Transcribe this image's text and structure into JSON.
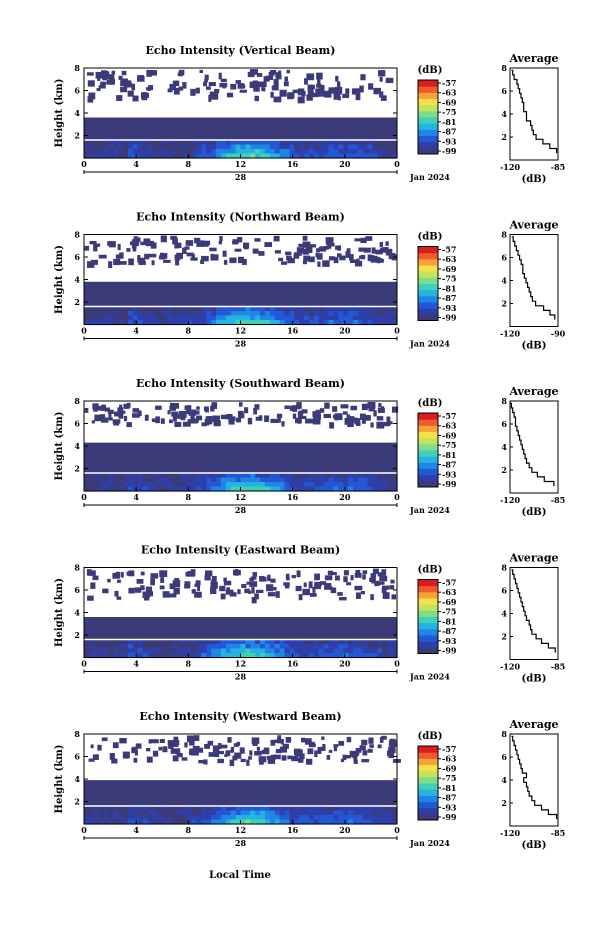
{
  "figure": {
    "xlabel": "Local Time",
    "date_label": "Jan 2024",
    "day_label": "28",
    "avg_title": "Average",
    "cbar_label": "(dB)",
    "avg_xlabel": "(dB)"
  },
  "colors": {
    "background_fill": "#3b3b7a",
    "colormap": [
      "#3b3b7a",
      "#2f3fa8",
      "#2457d6",
      "#1f86e8",
      "#27b3e0",
      "#3fd0b8",
      "#7fdc8a",
      "#c2e35a",
      "#f4e04a",
      "#f6a43a",
      "#ef5a2e",
      "#d81e1e"
    ]
  },
  "chart_data": [
    {
      "type": "heatmap",
      "title": "Echo Intensity (Vertical Beam)",
      "ylabel": "Height (km)",
      "x_ticks": [
        "0",
        "4",
        "8",
        "12",
        "16",
        "20",
        "0"
      ],
      "y_ticks": [
        "2",
        "4",
        "6",
        "8"
      ],
      "xlim": [
        0,
        24
      ],
      "ylim": [
        0,
        8
      ],
      "colorbar_ticks": [
        "-57",
        "-63",
        "-69",
        "-75",
        "-81",
        "-87",
        "-93",
        "-99"
      ],
      "white_line_km": 1.6,
      "noise_floor_km": 3.6,
      "average_profile": {
        "title": "Average",
        "x_ticks": [
          "-120",
          "-85"
        ],
        "xlim": [
          -120,
          -85
        ],
        "y_ticks": [
          "2",
          "4",
          "6",
          "8"
        ],
        "heights_km": [
          0.6,
          1.0,
          1.4,
          1.8,
          2.2,
          2.6,
          3.0,
          3.4,
          3.8,
          4.2,
          4.6,
          5.0,
          5.4,
          5.8,
          6.2,
          6.6,
          7.0,
          7.4,
          7.8
        ],
        "values_db": [
          -86,
          -91,
          -96,
          -101,
          -103,
          -104,
          -105,
          -108,
          -108,
          -110,
          -110,
          -111,
          -112,
          -113,
          -114,
          -115,
          -117,
          -118,
          -119
        ]
      }
    },
    {
      "type": "heatmap",
      "title": "Echo Intensity (Northward Beam)",
      "ylabel": "Height (km)",
      "x_ticks": [
        "0",
        "4",
        "8",
        "12",
        "16",
        "20",
        "0"
      ],
      "y_ticks": [
        "2",
        "4",
        "6",
        "8"
      ],
      "xlim": [
        0,
        24
      ],
      "ylim": [
        0,
        8
      ],
      "colorbar_ticks": [
        "-57",
        "-63",
        "-69",
        "-75",
        "-81",
        "-87",
        "-93",
        "-99"
      ],
      "white_line_km": 1.6,
      "noise_floor_km": 3.8,
      "average_profile": {
        "title": "Average",
        "x_ticks": [
          "-120",
          "-90"
        ],
        "xlim": [
          -120,
          -90
        ],
        "y_ticks": [
          "2",
          "4",
          "6",
          "8"
        ],
        "heights_km": [
          0.6,
          1.0,
          1.4,
          1.8,
          2.2,
          2.6,
          3.0,
          3.4,
          3.8,
          4.2,
          4.6,
          5.0,
          5.4,
          5.8,
          6.2,
          6.6,
          7.0,
          7.4,
          7.8
        ],
        "values_db": [
          -92,
          -95,
          -99,
          -104,
          -106,
          -107,
          -108,
          -109,
          -110,
          -111,
          -112,
          -112,
          -113,
          -114,
          -115,
          -116,
          -117,
          -118,
          -119
        ]
      }
    },
    {
      "type": "heatmap",
      "title": "Echo Intensity (Southward Beam)",
      "ylabel": "Height (km)",
      "x_ticks": [
        "0",
        "4",
        "8",
        "12",
        "16",
        "20",
        "0"
      ],
      "y_ticks": [
        "2",
        "4",
        "6",
        "8"
      ],
      "xlim": [
        0,
        24
      ],
      "ylim": [
        0,
        8
      ],
      "colorbar_ticks": [
        "-57",
        "-63",
        "-69",
        "-75",
        "-81",
        "-87",
        "-93",
        "-99"
      ],
      "white_line_km": 1.6,
      "noise_floor_km": 4.3,
      "average_profile": {
        "title": "Average",
        "x_ticks": [
          "-120",
          "-85"
        ],
        "xlim": [
          -120,
          -85
        ],
        "y_ticks": [
          "2",
          "4",
          "6",
          "8"
        ],
        "heights_km": [
          0.6,
          1.0,
          1.4,
          1.8,
          2.2,
          2.6,
          3.0,
          3.4,
          3.8,
          4.2,
          4.6,
          5.0,
          5.4,
          5.8,
          6.2,
          6.6,
          7.0,
          7.4,
          7.8
        ],
        "values_db": [
          -88,
          -95,
          -100,
          -104,
          -106,
          -108,
          -109,
          -110,
          -111,
          -112,
          -113,
          -114,
          -115,
          -116,
          -116,
          -117,
          -118,
          -119,
          -120
        ]
      }
    },
    {
      "type": "heatmap",
      "title": "Echo Intensity (Eastward Beam)",
      "ylabel": "Height (km)",
      "x_ticks": [
        "0",
        "4",
        "8",
        "12",
        "16",
        "20",
        "0"
      ],
      "y_ticks": [
        "2",
        "4",
        "6",
        "8"
      ],
      "xlim": [
        0,
        24
      ],
      "ylim": [
        0,
        8
      ],
      "colorbar_ticks": [
        "-57",
        "-63",
        "-69",
        "-75",
        "-81",
        "-87",
        "-93",
        "-99"
      ],
      "white_line_km": 1.6,
      "noise_floor_km": 3.6,
      "average_profile": {
        "title": "Average",
        "x_ticks": [
          "-120",
          "-85"
        ],
        "xlim": [
          -120,
          -85
        ],
        "y_ticks": [
          "2",
          "4",
          "6",
          "8"
        ],
        "heights_km": [
          0.6,
          1.0,
          1.4,
          1.8,
          2.2,
          2.6,
          3.0,
          3.4,
          3.8,
          4.2,
          4.6,
          5.0,
          5.4,
          5.8,
          6.2,
          6.6,
          7.0,
          7.4,
          7.8
        ],
        "values_db": [
          -87,
          -92,
          -97,
          -101,
          -104,
          -105,
          -106,
          -108,
          -109,
          -110,
          -111,
          -112,
          -113,
          -114,
          -115,
          -116,
          -117,
          -118,
          -119
        ]
      }
    },
    {
      "type": "heatmap",
      "title": "Echo Intensity (Westward Beam)",
      "ylabel": "Height (km)",
      "x_ticks": [
        "0",
        "4",
        "8",
        "12",
        "16",
        "20",
        "0"
      ],
      "y_ticks": [
        "2",
        "4",
        "6",
        "8"
      ],
      "xlim": [
        0,
        24
      ],
      "ylim": [
        0,
        8
      ],
      "colorbar_ticks": [
        "-57",
        "-63",
        "-69",
        "-75",
        "-81",
        "-87",
        "-93",
        "-99"
      ],
      "white_line_km": 1.6,
      "noise_floor_km": 3.9,
      "average_profile": {
        "title": "Average",
        "x_ticks": [
          "-120",
          "-85"
        ],
        "xlim": [
          -120,
          -85
        ],
        "y_ticks": [
          "2",
          "4",
          "6",
          "8"
        ],
        "heights_km": [
          0.6,
          1.0,
          1.4,
          1.8,
          2.2,
          2.6,
          3.0,
          3.4,
          3.8,
          4.2,
          4.6,
          5.0,
          5.4,
          5.8,
          6.2,
          6.6,
          7.0,
          7.4,
          7.8
        ],
        "values_db": [
          -86,
          -92,
          -97,
          -102,
          -104,
          -106,
          -107,
          -108,
          -110,
          -108,
          -111,
          -112,
          -113,
          -114,
          -115,
          -116,
          -117,
          -118,
          -119
        ]
      }
    }
  ]
}
